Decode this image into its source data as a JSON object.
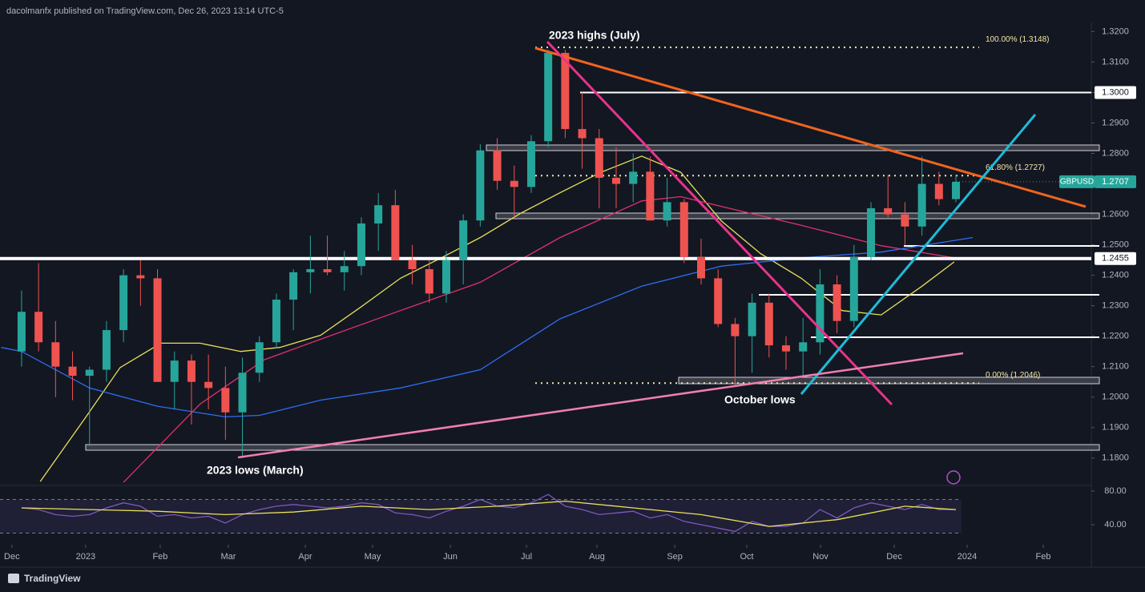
{
  "header": {
    "text": "dacolmanfx published on TradingView.com, Dec 26, 2023 13:14 UTC-5"
  },
  "footer": {
    "brand": "TradingView"
  },
  "chart_data": [
    {
      "type": "candlestick",
      "symbol": "GBPUSD",
      "last_price": {
        "value": 1.2707,
        "label": "1.2707"
      },
      "up_color": "#26a69a",
      "down_color": "#ef5350",
      "xlim": [
        -1.27,
        62.97
      ],
      "ylim": [
        1.171,
        1.323
      ],
      "xticks": [
        {
          "value": -0.57,
          "label": "Dec"
        },
        {
          "value": 3.77,
          "label": "2023"
        },
        {
          "value": 8.16,
          "label": "Feb"
        },
        {
          "value": 12.17,
          "label": "Mar"
        },
        {
          "value": 16.7,
          "label": "Apr"
        },
        {
          "value": 20.66,
          "label": "May"
        },
        {
          "value": 25.24,
          "label": "Jun"
        },
        {
          "value": 29.72,
          "label": "Jul"
        },
        {
          "value": 33.87,
          "label": "Aug"
        },
        {
          "value": 38.45,
          "label": "Sep"
        },
        {
          "value": 42.69,
          "label": "Oct"
        },
        {
          "value": 47.03,
          "label": "Nov"
        },
        {
          "value": 51.37,
          "label": "Dec"
        },
        {
          "value": 55.66,
          "label": "2024"
        },
        {
          "value": 60.14,
          "label": "Feb"
        }
      ],
      "yticks": [
        {
          "value": 1.18,
          "label": "1.1800"
        },
        {
          "value": 1.19,
          "label": "1.1900"
        },
        {
          "value": 1.2,
          "label": "1.2000"
        },
        {
          "value": 1.21,
          "label": "1.2100"
        },
        {
          "value": 1.22,
          "label": "1.2200"
        },
        {
          "value": 1.23,
          "label": "1.2300"
        },
        {
          "value": 1.24,
          "label": "1.2400"
        },
        {
          "value": 1.25,
          "label": "1.2500"
        },
        {
          "value": 1.26,
          "label": "1.2600"
        },
        {
          "value": 1.27,
          "label": "1.2700"
        },
        {
          "value": 1.28,
          "label": "1.2800"
        },
        {
          "value": 1.29,
          "label": "1.2900"
        },
        {
          "value": 1.3,
          "label": "1.3000"
        },
        {
          "value": 1.31,
          "label": "1.3100"
        },
        {
          "value": 1.32,
          "label": "1.3200"
        }
      ],
      "open": [
        1.215,
        1.228,
        1.218,
        1.21,
        1.207,
        1.209,
        1.222,
        1.24,
        1.239,
        1.205,
        1.212,
        1.205,
        1.203,
        1.195,
        1.208,
        1.218,
        1.232,
        1.241,
        1.242,
        1.241,
        1.243,
        1.257,
        1.263,
        1.245,
        1.242,
        1.234,
        1.245,
        1.258,
        1.281,
        1.271,
        1.269,
        1.284,
        1.313,
        1.288,
        1.285,
        1.272,
        1.27,
        1.274,
        1.258,
        1.264,
        1.246,
        1.239,
        1.224,
        1.22,
        1.231,
        1.217,
        1.215,
        1.218,
        1.237,
        1.225,
        1.246,
        1.262,
        1.26,
        1.256,
        1.27,
        1.265
      ],
      "high": [
        1.235,
        1.244,
        1.225,
        1.215,
        1.21,
        1.225,
        1.242,
        1.245,
        1.242,
        1.215,
        1.214,
        1.214,
        1.21,
        1.213,
        1.22,
        1.234,
        1.242,
        1.253,
        1.253,
        1.248,
        1.259,
        1.267,
        1.268,
        1.25,
        1.245,
        1.248,
        1.26,
        1.283,
        1.285,
        1.276,
        1.286,
        1.314,
        1.314,
        1.3,
        1.288,
        1.282,
        1.28,
        1.279,
        1.272,
        1.265,
        1.252,
        1.242,
        1.226,
        1.234,
        1.234,
        1.22,
        1.226,
        1.242,
        1.24,
        1.25,
        1.264,
        1.273,
        1.264,
        1.279,
        1.274,
        1.273
      ],
      "low": [
        1.21,
        1.215,
        1.2,
        1.199,
        1.184,
        1.205,
        1.218,
        1.23,
        1.205,
        1.196,
        1.191,
        1.196,
        1.186,
        1.18,
        1.205,
        1.216,
        1.222,
        1.234,
        1.24,
        1.235,
        1.24,
        1.248,
        1.245,
        1.237,
        1.231,
        1.231,
        1.237,
        1.256,
        1.268,
        1.259,
        1.267,
        1.282,
        1.285,
        1.275,
        1.262,
        1.262,
        1.264,
        1.258,
        1.256,
        1.244,
        1.237,
        1.223,
        1.204,
        1.208,
        1.213,
        1.209,
        1.207,
        1.214,
        1.221,
        1.223,
        1.245,
        1.259,
        1.25,
        1.253,
        1.263,
        1.264
      ],
      "close": [
        1.228,
        1.218,
        1.21,
        1.207,
        1.209,
        1.222,
        1.24,
        1.239,
        1.205,
        1.212,
        1.205,
        1.203,
        1.195,
        1.208,
        1.218,
        1.232,
        1.241,
        1.242,
        1.241,
        1.243,
        1.257,
        1.263,
        1.245,
        1.242,
        1.234,
        1.245,
        1.258,
        1.281,
        1.271,
        1.269,
        1.284,
        1.313,
        1.288,
        1.285,
        1.272,
        1.27,
        1.274,
        1.258,
        1.264,
        1.246,
        1.239,
        1.224,
        1.22,
        1.231,
        1.217,
        1.215,
        1.218,
        1.237,
        1.225,
        1.246,
        1.262,
        1.26,
        1.256,
        1.27,
        1.265,
        1.2707
      ],
      "series": [
        {
          "color": "#e8e05a",
          "x": [
            1.1,
            3.8,
            5.8,
            8.2,
            10.5,
            12.9,
            15.2,
            17.6,
            20,
            22.3,
            24.7,
            27,
            29.4,
            31.7,
            34.1,
            36.5,
            38.8,
            41.2,
            43.5,
            45.9,
            48.3,
            50.6,
            53,
            54.9
          ],
          "values": [
            1.1723,
            1.1936,
            1.2097,
            1.2177,
            1.2177,
            1.215,
            1.2163,
            1.2203,
            1.2297,
            1.239,
            1.2457,
            1.2524,
            1.2604,
            1.2671,
            1.2738,
            1.2791,
            1.2738,
            1.2578,
            1.2471,
            1.239,
            1.2284,
            1.227,
            1.2364,
            1.2444
          ]
        },
        {
          "color": "#e0306f",
          "x": [
            6,
            10.5,
            14.3,
            17.6,
            22.3,
            27,
            31.7,
            36.5,
            38.8,
            41.2,
            45.9,
            50.6,
            54.9
          ],
          "values": [
            1.172,
            1.1977,
            1.2123,
            1.219,
            1.2284,
            1.2377,
            1.2524,
            1.2644,
            1.2658,
            1.2626,
            1.2564,
            1.2497,
            1.2457
          ]
        },
        {
          "color": "#2f6df0",
          "x": [
            -1.2,
            0,
            4,
            8,
            12,
            14,
            17.6,
            22.3,
            27,
            31.7,
            36.5,
            41.2,
            45.9,
            50.6,
            56
          ],
          "values": [
            1.2163,
            1.215,
            1.203,
            1.197,
            1.1935,
            1.194,
            1.199,
            1.203,
            1.209,
            1.2257,
            1.2364,
            1.243,
            1.2457,
            1.2476,
            1.2524
          ]
        }
      ],
      "levels": [
        {
          "value": 1.3,
          "label": "1.3000"
        },
        {
          "value": 1.2455,
          "label": "1.2455"
        }
      ],
      "fibs": [
        {
          "value": 1.3148,
          "label": "100.00% (1.3148)"
        },
        {
          "value": 1.2727,
          "label": "61.80% (1.2727)"
        },
        {
          "value": 1.2046,
          "label": "0.00% (1.2046)"
        }
      ],
      "annotations": [
        "2023 highs (July)",
        "October lows",
        "2023 lows (March)"
      ]
    },
    {
      "type": "line",
      "xlim": [
        -1.27,
        62.97
      ],
      "ylim": [
        16.2,
        85.7
      ],
      "yticks": [
        {
          "value": 80,
          "label": "80.00"
        },
        {
          "value": 40,
          "label": "40.00"
        }
      ],
      "band": [
        30,
        70
      ],
      "series": [
        {
          "color": "#7e57c2",
          "values": [
            60,
            58,
            52,
            50,
            52,
            60,
            66,
            62,
            50,
            52,
            48,
            50,
            42,
            52,
            58,
            62,
            64,
            62,
            60,
            62,
            66,
            64,
            54,
            52,
            48,
            56,
            62,
            70,
            62,
            60,
            66,
            76,
            62,
            58,
            52,
            54,
            56,
            48,
            52,
            44,
            40,
            36,
            32,
            44,
            38,
            38,
            42,
            58,
            48,
            60,
            66,
            62,
            58,
            64,
            58,
            58
          ]
        },
        {
          "color": "#e8e05a",
          "x": [
            0,
            4,
            8,
            12,
            16,
            20,
            24,
            28,
            32,
            36,
            40,
            44,
            48,
            52,
            55
          ],
          "values": [
            60,
            58,
            56,
            52,
            55,
            62,
            58,
            62,
            68,
            60,
            52,
            38,
            46,
            62,
            58
          ]
        }
      ]
    }
  ]
}
